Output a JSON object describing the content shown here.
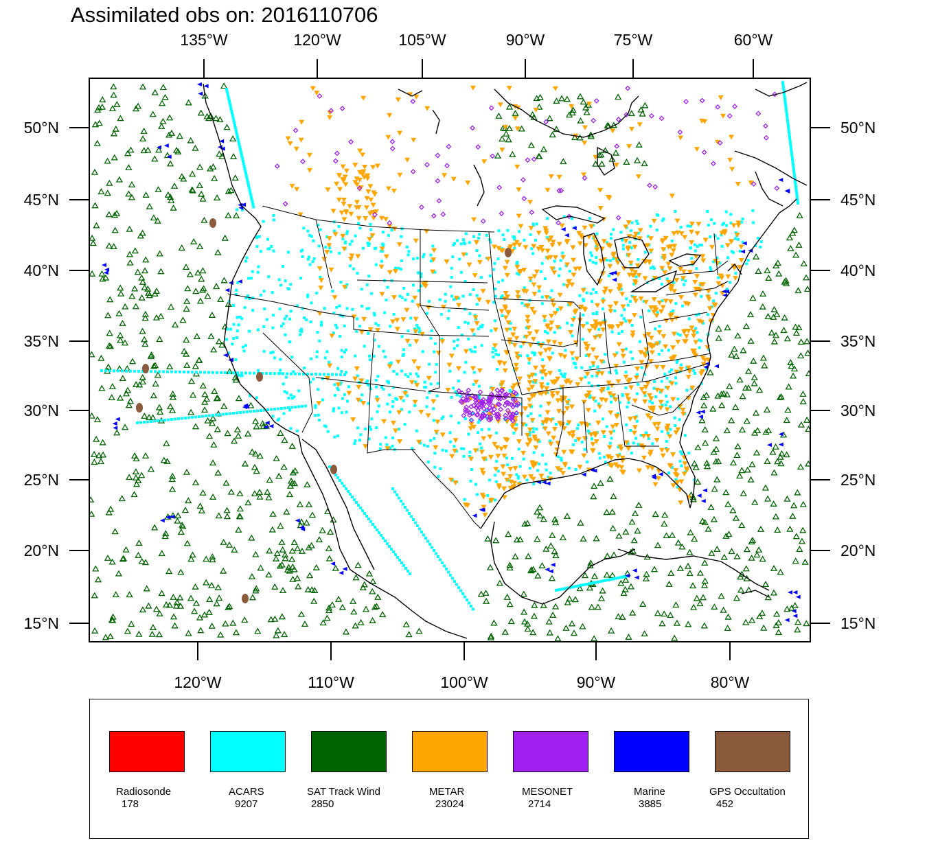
{
  "title": "Assimilated obs on: 2016110706",
  "axes": {
    "top_lon_labels": [
      "135°W",
      "120°W",
      "105°W",
      "90°W",
      "75°W",
      "60°W"
    ],
    "bottom_lon_labels": [
      "120°W",
      "110°W",
      "100°W",
      "90°W",
      "80°W"
    ],
    "lat_labels": [
      "50°N",
      "45°N",
      "40°N",
      "35°N",
      "30°N",
      "25°N",
      "20°N",
      "15°N"
    ]
  },
  "legend": [
    {
      "name": "Radiosonde",
      "count": "178",
      "color": "#ff0000"
    },
    {
      "name": "ACARS",
      "count": "9207",
      "color": "#00ffff"
    },
    {
      "name": "SAT Track Wind",
      "count": "2850",
      "color": "#006400"
    },
    {
      "name": "METAR",
      "count": "23024",
      "color": "#ffa500"
    },
    {
      "name": "MESONET",
      "count": "2714",
      "color": "#a020f0"
    },
    {
      "name": "Marine",
      "count": "3885",
      "color": "#0000ff"
    },
    {
      "name": "GPS Occultation",
      "count": "452",
      "color": "#8b5a3c"
    }
  ]
}
